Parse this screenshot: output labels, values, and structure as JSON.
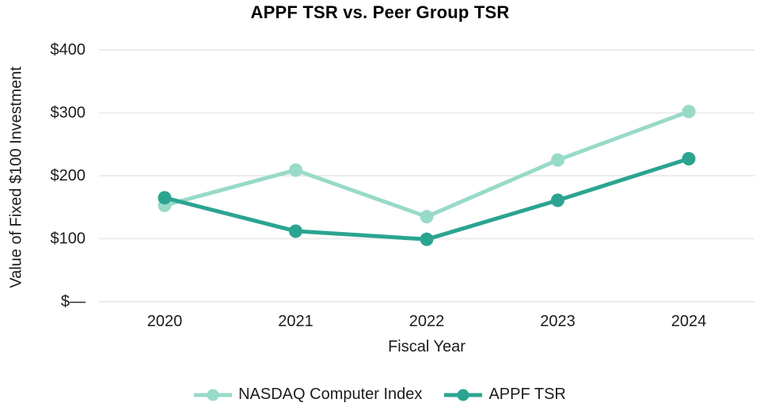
{
  "chart_data": {
    "type": "line",
    "title": "APPF TSR vs. Peer Group TSR",
    "xlabel": "Fiscal Year",
    "ylabel": "Value of Fixed $100 Investment",
    "categories": [
      "2020",
      "2021",
      "2022",
      "2023",
      "2024"
    ],
    "series": [
      {
        "name": "NASDAQ Computer Index",
        "values": [
          153,
          209,
          135,
          225,
          302
        ],
        "color": "#98dac8"
      },
      {
        "name": "APPF TSR",
        "values": [
          165,
          112,
          99,
          161,
          227
        ],
        "color": "#2ba490"
      }
    ],
    "ylim": [
      0,
      400
    ],
    "yticks": [
      {
        "value": 400,
        "label": "$400"
      },
      {
        "value": 300,
        "label": "$300"
      },
      {
        "value": 200,
        "label": "$200"
      },
      {
        "value": 100,
        "label": "$100"
      },
      {
        "value": 0,
        "label": "$—"
      }
    ],
    "grid": "horizontal",
    "legend_position": "bottom",
    "marker": "circle",
    "colors": {
      "gridline": "#ececec",
      "text": "#1c1c1c",
      "background": "#ffffff"
    }
  }
}
